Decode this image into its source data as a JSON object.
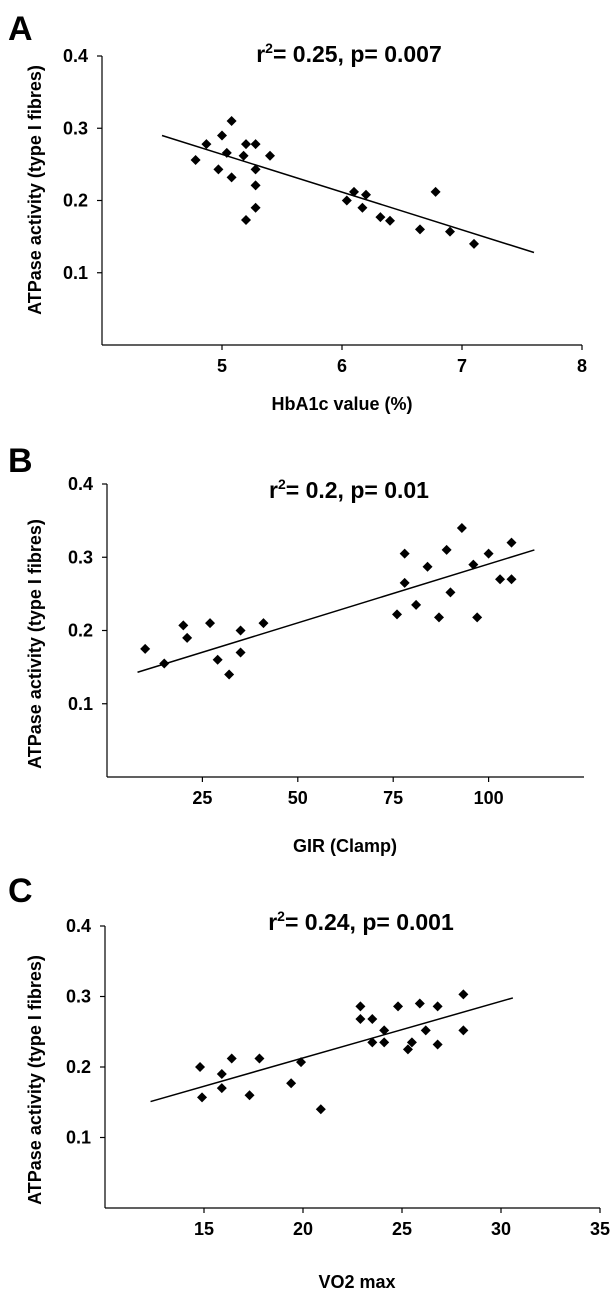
{
  "chart_data": [
    {
      "type": "scatter",
      "panel": "A",
      "annotation": "r²= 0.25, p= 0.007",
      "annotation_parts": {
        "r": "r",
        "sup": "2",
        "rest": "= 0.25, p= 0.007"
      },
      "xlabel": "HbA1c value (%)",
      "ylabel": "ATPase activity (type I fibres)",
      "xlim": [
        4,
        8
      ],
      "ylim": [
        0,
        0.4
      ],
      "xticks": [
        5,
        6,
        7,
        8
      ],
      "xtick_labels": [
        "5",
        "6",
        "7",
        "8"
      ],
      "yticks": [
        0.1,
        0.2,
        0.3,
        0.4
      ],
      "ytick_labels": [
        "0.1",
        "0.2",
        "0.3",
        "0.4"
      ],
      "trendline": {
        "x": [
          4.5,
          7.6
        ],
        "y": [
          0.29,
          0.128
        ]
      },
      "points": [
        {
          "x": 4.78,
          "y": 0.256
        },
        {
          "x": 4.87,
          "y": 0.278
        },
        {
          "x": 4.97,
          "y": 0.243
        },
        {
          "x": 5.0,
          "y": 0.29
        },
        {
          "x": 5.04,
          "y": 0.266
        },
        {
          "x": 5.08,
          "y": 0.31
        },
        {
          "x": 5.08,
          "y": 0.232
        },
        {
          "x": 5.18,
          "y": 0.262
        },
        {
          "x": 5.2,
          "y": 0.278
        },
        {
          "x": 5.2,
          "y": 0.173
        },
        {
          "x": 5.28,
          "y": 0.278
        },
        {
          "x": 5.28,
          "y": 0.243
        },
        {
          "x": 5.28,
          "y": 0.221
        },
        {
          "x": 5.28,
          "y": 0.19
        },
        {
          "x": 5.4,
          "y": 0.262
        },
        {
          "x": 6.04,
          "y": 0.2
        },
        {
          "x": 6.1,
          "y": 0.212
        },
        {
          "x": 6.17,
          "y": 0.19
        },
        {
          "x": 6.2,
          "y": 0.208
        },
        {
          "x": 6.32,
          "y": 0.177
        },
        {
          "x": 6.4,
          "y": 0.172
        },
        {
          "x": 6.65,
          "y": 0.16
        },
        {
          "x": 6.78,
          "y": 0.212
        },
        {
          "x": 6.9,
          "y": 0.157
        },
        {
          "x": 7.1,
          "y": 0.14
        }
      ]
    },
    {
      "type": "scatter",
      "panel": "B",
      "annotation": "r²= 0.2, p= 0.01",
      "annotation_parts": {
        "r": "r",
        "sup": "2",
        "rest": "= 0.2, p= 0.01"
      },
      "xlabel": "GIR (Clamp)",
      "ylabel": "ATPase activity (type I fibres)",
      "xlim": [
        0,
        125
      ],
      "ylim": [
        0,
        0.4
      ],
      "xticks": [
        25,
        50,
        75,
        100
      ],
      "xtick_labels": [
        "25",
        "50",
        "75",
        "100"
      ],
      "yticks": [
        0.1,
        0.2,
        0.3,
        0.4
      ],
      "ytick_labels": [
        "0.1",
        "0.2",
        "0.3",
        "0.4"
      ],
      "trendline": {
        "x": [
          8,
          112
        ],
        "y": [
          0.143,
          0.31
        ]
      },
      "points": [
        {
          "x": 10,
          "y": 0.175
        },
        {
          "x": 15,
          "y": 0.155
        },
        {
          "x": 20,
          "y": 0.207
        },
        {
          "x": 21,
          "y": 0.19
        },
        {
          "x": 27,
          "y": 0.21
        },
        {
          "x": 29,
          "y": 0.16
        },
        {
          "x": 32,
          "y": 0.14
        },
        {
          "x": 35,
          "y": 0.2
        },
        {
          "x": 35,
          "y": 0.17
        },
        {
          "x": 41,
          "y": 0.21
        },
        {
          "x": 76,
          "y": 0.222
        },
        {
          "x": 78,
          "y": 0.305
        },
        {
          "x": 78,
          "y": 0.265
        },
        {
          "x": 81,
          "y": 0.235
        },
        {
          "x": 84,
          "y": 0.287
        },
        {
          "x": 87,
          "y": 0.218
        },
        {
          "x": 89,
          "y": 0.31
        },
        {
          "x": 90,
          "y": 0.252
        },
        {
          "x": 93,
          "y": 0.34
        },
        {
          "x": 96,
          "y": 0.29
        },
        {
          "x": 97,
          "y": 0.218
        },
        {
          "x": 100,
          "y": 0.305
        },
        {
          "x": 103,
          "y": 0.27
        },
        {
          "x": 106,
          "y": 0.32
        },
        {
          "x": 106,
          "y": 0.27
        }
      ]
    },
    {
      "type": "scatter",
      "panel": "C",
      "annotation": "r²= 0.24, p= 0.001",
      "annotation_parts": {
        "r": "r",
        "sup": "2",
        "rest": "= 0.24, p= 0.001"
      },
      "xlabel": "VO2 max",
      "ylabel": "ATPase activity (type I fibres)",
      "xlim": [
        10,
        35
      ],
      "ylim": [
        0,
        0.4
      ],
      "xticks": [
        15,
        20,
        25,
        30,
        35
      ],
      "xtick_labels": [
        "15",
        "20",
        "25",
        "30",
        "35"
      ],
      "yticks": [
        0.1,
        0.2,
        0.3,
        0.4
      ],
      "ytick_labels": [
        "0.1",
        "0.2",
        "0.3",
        "0.4"
      ],
      "trendline": {
        "x": [
          12.3,
          30.6
        ],
        "y": [
          0.151,
          0.298
        ]
      },
      "points": [
        {
          "x": 14.8,
          "y": 0.2
        },
        {
          "x": 14.9,
          "y": 0.157
        },
        {
          "x": 15.9,
          "y": 0.19
        },
        {
          "x": 15.9,
          "y": 0.17
        },
        {
          "x": 16.4,
          "y": 0.212
        },
        {
          "x": 17.3,
          "y": 0.16
        },
        {
          "x": 17.8,
          "y": 0.212
        },
        {
          "x": 19.4,
          "y": 0.177
        },
        {
          "x": 19.9,
          "y": 0.207
        },
        {
          "x": 20.9,
          "y": 0.14
        },
        {
          "x": 22.9,
          "y": 0.286
        },
        {
          "x": 22.9,
          "y": 0.268
        },
        {
          "x": 23.5,
          "y": 0.268
        },
        {
          "x": 23.5,
          "y": 0.235
        },
        {
          "x": 24.1,
          "y": 0.252
        },
        {
          "x": 24.1,
          "y": 0.235
        },
        {
          "x": 24.8,
          "y": 0.286
        },
        {
          "x": 25.3,
          "y": 0.225
        },
        {
          "x": 25.5,
          "y": 0.235
        },
        {
          "x": 25.9,
          "y": 0.29
        },
        {
          "x": 26.2,
          "y": 0.252
        },
        {
          "x": 26.8,
          "y": 0.286
        },
        {
          "x": 26.8,
          "y": 0.232
        },
        {
          "x": 28.1,
          "y": 0.303
        },
        {
          "x": 28.1,
          "y": 0.252
        }
      ]
    }
  ]
}
